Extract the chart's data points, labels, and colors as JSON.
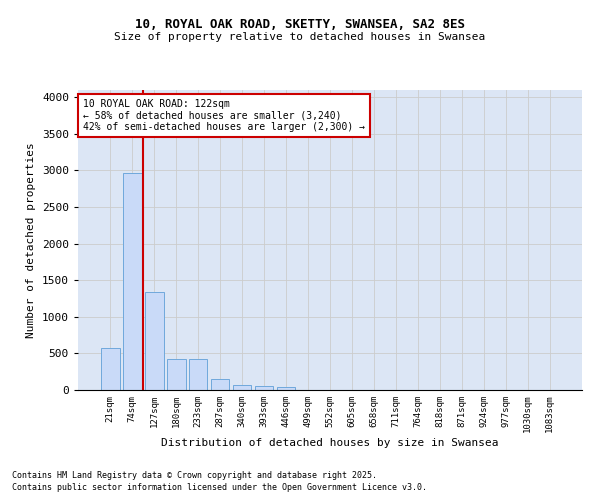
{
  "title_line1": "10, ROYAL OAK ROAD, SKETTY, SWANSEA, SA2 8ES",
  "title_line2": "Size of property relative to detached houses in Swansea",
  "xlabel": "Distribution of detached houses by size in Swansea",
  "ylabel": "Number of detached properties",
  "footer_line1": "Contains HM Land Registry data © Crown copyright and database right 2025.",
  "footer_line2": "Contains public sector information licensed under the Open Government Licence v3.0.",
  "bar_labels": [
    "21sqm",
    "74sqm",
    "127sqm",
    "180sqm",
    "233sqm",
    "287sqm",
    "340sqm",
    "393sqm",
    "446sqm",
    "499sqm",
    "552sqm",
    "605sqm",
    "658sqm",
    "711sqm",
    "764sqm",
    "818sqm",
    "871sqm",
    "924sqm",
    "977sqm",
    "1030sqm",
    "1083sqm"
  ],
  "bar_values": [
    580,
    2970,
    1340,
    430,
    430,
    155,
    75,
    55,
    35,
    0,
    0,
    0,
    0,
    0,
    0,
    0,
    0,
    0,
    0,
    0,
    0
  ],
  "bar_color": "#c9daf8",
  "bar_edge_color": "#6fa8dc",
  "grid_color": "#cccccc",
  "background_color": "#dce6f5",
  "annotation_text": "10 ROYAL OAK ROAD: 122sqm\n← 58% of detached houses are smaller (3,240)\n42% of semi-detached houses are larger (2,300) →",
  "annotation_box_color": "#cc0000",
  "vline_color": "#cc0000",
  "ylim": [
    0,
    4100
  ],
  "yticks": [
    0,
    500,
    1000,
    1500,
    2000,
    2500,
    3000,
    3500,
    4000
  ]
}
